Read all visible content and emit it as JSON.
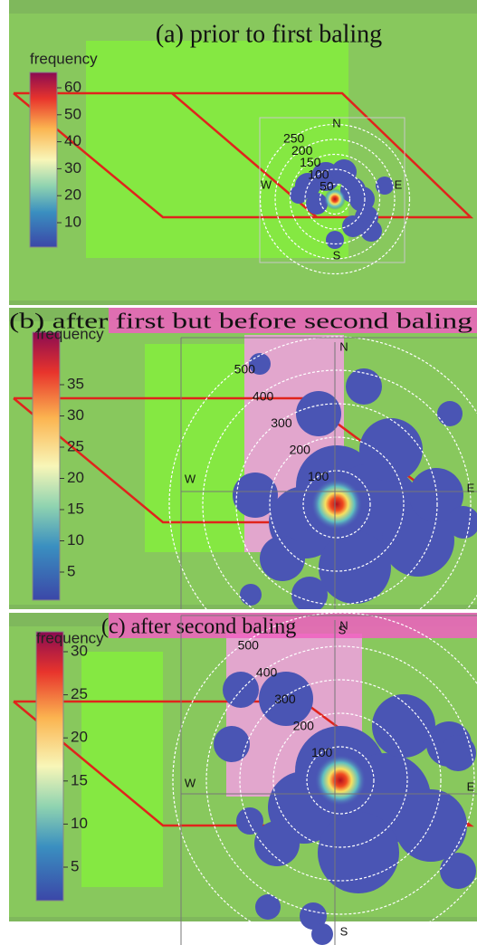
{
  "panels": [
    {
      "title": "(a) prior to first baling",
      "colorbar": {
        "label": "frequency",
        "ticks": [
          60,
          50,
          40,
          30,
          20,
          10
        ]
      },
      "rings": [
        50,
        100,
        150,
        200,
        250
      ],
      "compass": [
        "N",
        "E",
        "S",
        "W"
      ]
    },
    {
      "title": "(b) after first but before second baling",
      "colorbar": {
        "label": "frequency",
        "ticks": [
          35,
          30,
          25,
          20,
          15,
          10,
          5
        ]
      },
      "rings": [
        100,
        200,
        300,
        400,
        500
      ],
      "compass": [
        "N",
        "E",
        "S",
        "W"
      ]
    },
    {
      "title": "(c) after second baling",
      "colorbar": {
        "label": "frequency",
        "ticks": [
          30,
          25,
          20,
          15,
          10,
          5
        ]
      },
      "rings": [
        100,
        200,
        300,
        400,
        500
      ],
      "compass": [
        "N",
        "E",
        "S",
        "W"
      ]
    }
  ]
}
